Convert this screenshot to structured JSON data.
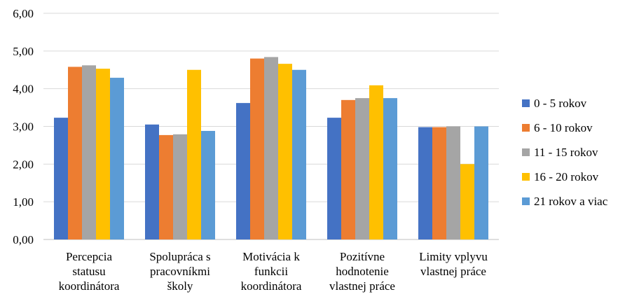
{
  "chart_data": {
    "type": "bar",
    "categories": [
      [
        "Percepcia",
        "statusu",
        "koordinátora"
      ],
      [
        "Spolupráca s",
        "pracovníkmi",
        "školy"
      ],
      [
        "Motivácia k",
        "funkcii",
        "koordinátora"
      ],
      [
        "Pozitívne",
        "hodnotenie",
        "vlastnej práce"
      ],
      [
        "Limity vplyvu",
        "vlastnej práce"
      ]
    ],
    "series": [
      {
        "name": "0 - 5 rokov",
        "color": "#4472c4",
        "values": [
          3.23,
          3.05,
          3.62,
          3.23,
          2.98
        ]
      },
      {
        "name": "6 - 10 rokov",
        "color": "#ed7d31",
        "values": [
          4.58,
          2.77,
          4.8,
          3.7,
          2.98
        ]
      },
      {
        "name": "11 - 15 rokov",
        "color": "#a5a5a5",
        "values": [
          4.62,
          2.79,
          4.84,
          3.75,
          3.0
        ]
      },
      {
        "name": "16 - 20 rokov",
        "color": "#ffc000",
        "values": [
          4.53,
          4.5,
          4.66,
          4.09,
          2.0
        ]
      },
      {
        "name": "21 rokov a viac",
        "color": "#5b9bd5",
        "values": [
          4.29,
          2.88,
          4.5,
          3.75,
          3.0
        ]
      }
    ],
    "ylim": [
      0,
      6
    ],
    "yticks": [
      "0,00",
      "1,00",
      "2,00",
      "3,00",
      "4,00",
      "5,00",
      "6,00"
    ],
    "ytick_values": [
      0,
      1,
      2,
      3,
      4,
      5,
      6
    ],
    "grid": true,
    "legend_position": "right"
  }
}
